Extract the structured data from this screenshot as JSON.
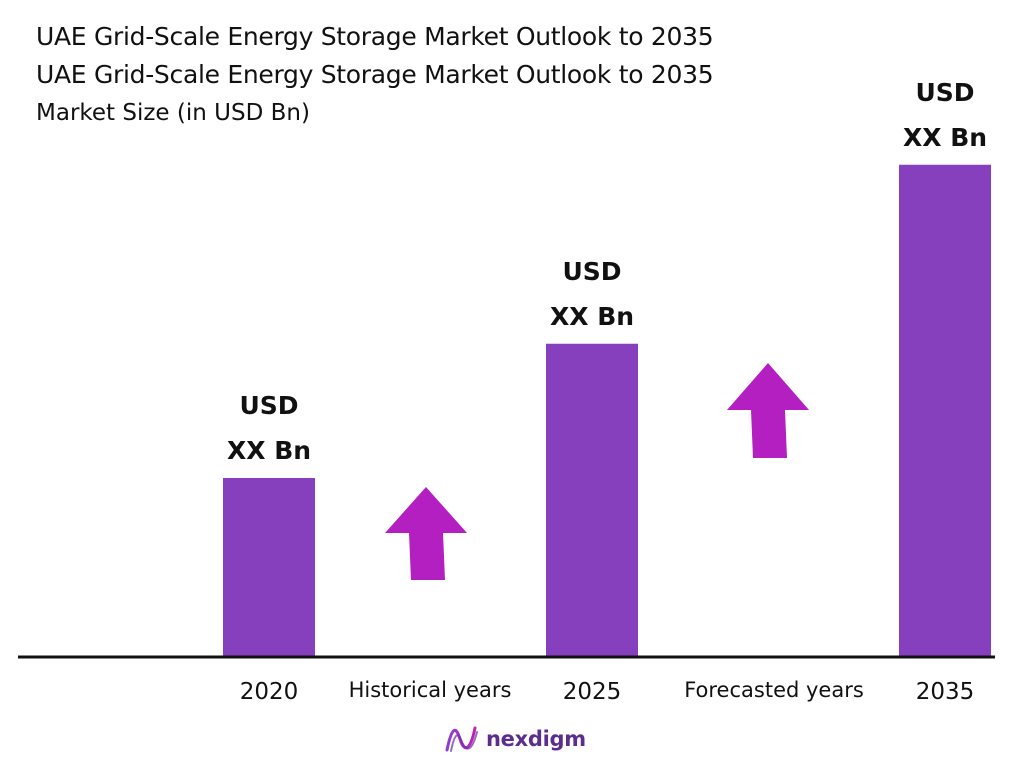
{
  "title_lines": [
    "UAE Grid-Scale Energy Storage Market Outlook to 2035",
    "UAE Grid-Scale Energy Storage Market Outlook to 2035"
  ],
  "subtitle": "Market Size (in USD Bn)",
  "chart_data": {
    "type": "bar",
    "categories": [
      "2020",
      "2025",
      "2035"
    ],
    "values": [
      1.0,
      1.75,
      2.75
    ],
    "value_labels": [
      [
        "USD",
        "XX Bn"
      ],
      [
        "USD",
        "XX Bn"
      ],
      [
        "USD",
        "XX Bn"
      ]
    ],
    "between_labels": [
      "Historical years",
      "Forecasted years"
    ],
    "ylim": [
      0,
      3.0
    ],
    "bar_color": "#8640bd",
    "arrow_color": "#b31fc0",
    "axis_color": "#111111",
    "grid": false
  },
  "logo": {
    "text": "nexdigm",
    "icon": "nexdigm-wave-logo-icon"
  }
}
